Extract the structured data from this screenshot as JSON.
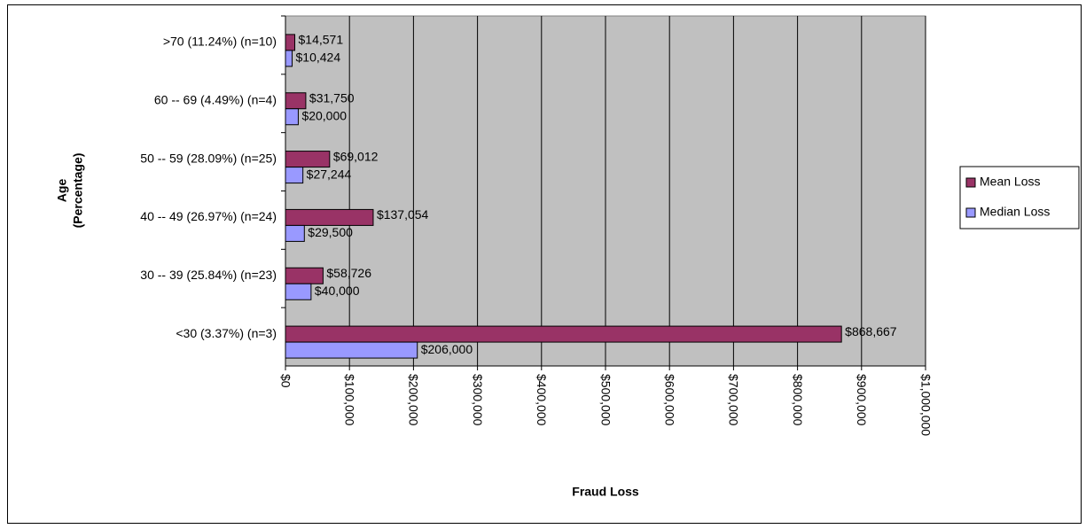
{
  "chart_data": {
    "type": "barh",
    "x_label": "Fraud Loss",
    "y_label": [
      "Age",
      "(Percentage)"
    ],
    "categories": [
      ">70 (11.24%) (n=10)",
      "60 -- 69 (4.49%) (n=4)",
      "50 -- 59 (28.09%) (n=25)",
      "40 -- 49 (26.97%) (n=24)",
      "30 -- 39 (25.84%) (n=23)",
      "<30  (3.37%) (n=3)"
    ],
    "series": [
      {
        "name": "Mean Loss",
        "color": "#993366",
        "values": [
          14571,
          31750,
          69012,
          137054,
          58726,
          868667
        ],
        "value_labels": [
          "$14,571",
          "$31,750",
          "$69,012",
          "$137,054",
          "$58,726",
          "$868,667"
        ]
      },
      {
        "name": "Median Loss",
        "color": "#9999ff",
        "values": [
          10424,
          20000,
          27244,
          29500,
          40000,
          206000
        ],
        "value_labels": [
          "$10,424",
          "$20,000",
          "$27,244",
          "$29,500",
          "$40,000",
          "$206,000"
        ]
      }
    ],
    "xlim": [
      0,
      1000000
    ],
    "xticks": [
      {
        "value": 0,
        "label": "$0"
      },
      {
        "value": 100000,
        "label": "$100,000"
      },
      {
        "value": 200000,
        "label": "$200,000"
      },
      {
        "value": 300000,
        "label": "$300,000"
      },
      {
        "value": 400000,
        "label": "$400,000"
      },
      {
        "value": 500000,
        "label": "$500,000"
      },
      {
        "value": 600000,
        "label": "$600,000"
      },
      {
        "value": 700000,
        "label": "$700,000"
      },
      {
        "value": 800000,
        "label": "$800,000"
      },
      {
        "value": 900000,
        "label": "$900,000"
      },
      {
        "value": 1000000,
        "label": "$1,000,000"
      }
    ],
    "grid": true,
    "background": "#c0c0c0",
    "legend": "right"
  }
}
